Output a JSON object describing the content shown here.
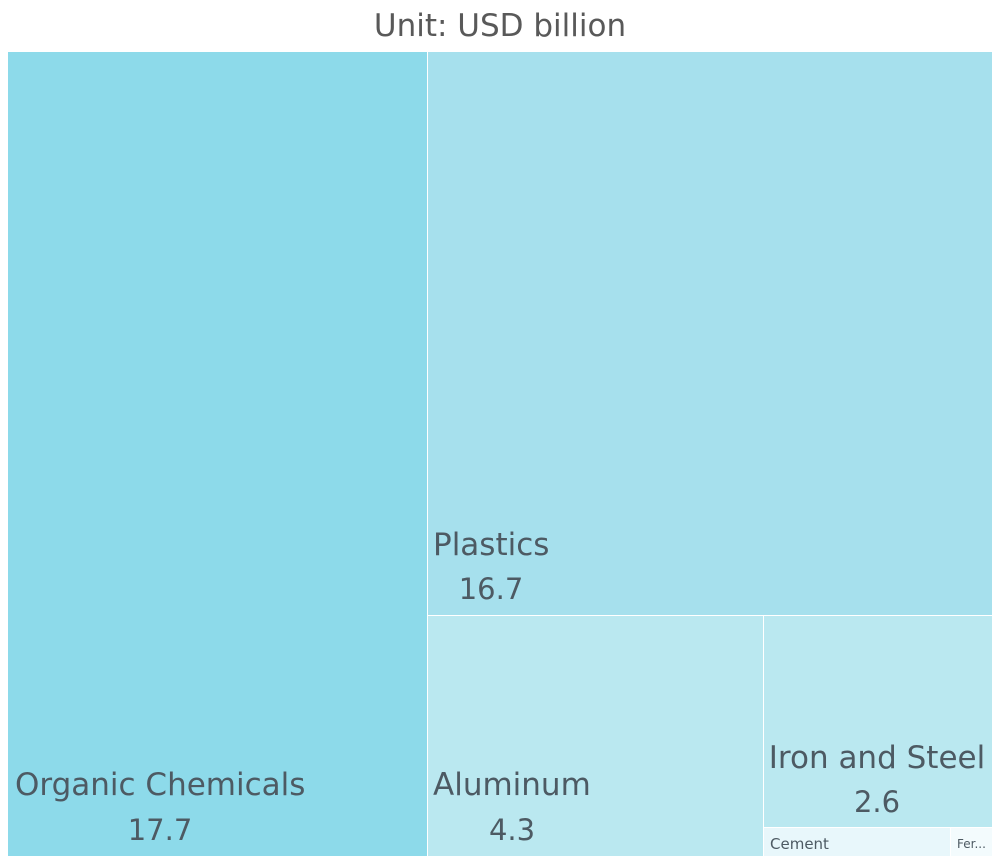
{
  "chart_data": {
    "type": "treemap",
    "title": "Unit: USD billion",
    "items": [
      {
        "name": "Organic Chemicals",
        "value": 17.7,
        "color": "#8ddaea"
      },
      {
        "name": "Plastics",
        "value": 16.7,
        "color": "#a6e0ed"
      },
      {
        "name": "Aluminum",
        "value": 4.3,
        "color": "#bae8f0"
      },
      {
        "name": "Iron and Steel",
        "value": 2.6,
        "color": "#bae8f0"
      },
      {
        "name": "Cement",
        "value": 0.2,
        "label": "Cement",
        "color": "#e8f7fb"
      },
      {
        "name": "Ferrous",
        "value": 0.06,
        "label": "Fer...",
        "color": "#f3fbfd"
      }
    ]
  }
}
